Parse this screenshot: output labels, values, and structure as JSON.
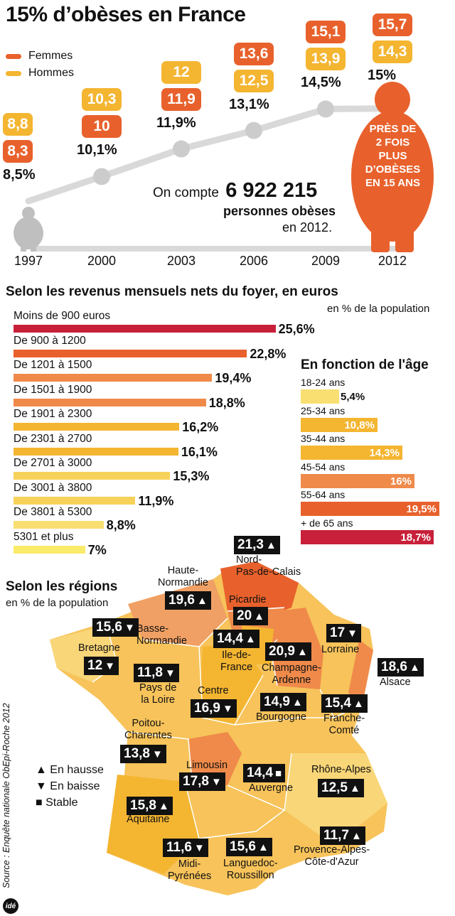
{
  "header": {
    "title": "15% d’obèses en France",
    "legend": [
      {
        "label": "Femmes",
        "color": "#e8612c"
      },
      {
        "label": "Hommes",
        "color": "#f4b531"
      }
    ]
  },
  "trend": {
    "note_pre": "On compte",
    "note_number": "6 922 215",
    "note_line2": "personnes obèses",
    "note_line3": "en 2012.",
    "figure_text": [
      "PRÈS DE",
      "2 FOIS",
      "PLUS",
      "D’OBÈSES",
      "EN 15 ANS"
    ]
  },
  "chart_data": [
    {
      "type": "line",
      "x": [
        "1997",
        "2000",
        "2003",
        "2006",
        "2009",
        "2012"
      ],
      "total": {
        "values": [
          8.5,
          10.1,
          11.9,
          13.1,
          14.5,
          15
        ],
        "labels": [
          "8,5%",
          "10,1%",
          "11,9%",
          "13,1%",
          "14,5%",
          "15%"
        ]
      },
      "series": [
        {
          "name": "Femmes",
          "values": [
            8.3,
            10,
            11.9,
            13.6,
            15.1,
            15.7
          ],
          "labels": [
            "8,3",
            "10",
            "11,9",
            "13,6",
            "15,1",
            "15,7"
          ]
        },
        {
          "name": "Hommes",
          "values": [
            8.8,
            10.3,
            12,
            12.5,
            13.9,
            14.3
          ],
          "labels": [
            "8,8",
            "10,3",
            "12",
            "12,5",
            "13,9",
            "14,3"
          ]
        }
      ],
      "order_top_first": [
        [
          "Hommes",
          "Femmes"
        ],
        [
          "Hommes",
          "Femmes"
        ],
        [
          "Hommes",
          "Femmes"
        ],
        [
          "Femmes",
          "Hommes"
        ],
        [
          "Femmes",
          "Hommes"
        ],
        [
          "Femmes",
          "Hommes"
        ]
      ]
    },
    {
      "type": "bar",
      "title": "Selon les revenus mensuels nets du foyer, en euros",
      "unit_note": "en % de la population",
      "categories": [
        "Moins de 900 euros",
        "De 900 à 1200",
        "De 1201 à 1500",
        "De 1501 à 1900",
        "De 1901 à 2300",
        "De 2301 à 2700",
        "De 2701 à 3000",
        "De 3001 à 3800",
        "De 3801 à 5300",
        "5301 et plus"
      ],
      "values": [
        25.6,
        22.8,
        19.4,
        18.8,
        16.2,
        16.1,
        15.3,
        11.9,
        8.8,
        7
      ],
      "labels": [
        "25,6%",
        "22,8%",
        "19,4%",
        "18,8%",
        "16,2%",
        "16,1%",
        "15,3%",
        "11,9%",
        "8,8%",
        "7%"
      ],
      "colors": [
        "#c8203a",
        "#e8612c",
        "#ef8a4a",
        "#ef8a4a",
        "#f4b531",
        "#f4b531",
        "#f7d25a",
        "#f7d25a",
        "#f9df72",
        "#faeb6a"
      ]
    },
    {
      "type": "bar",
      "title": "En fonction de l'âge",
      "categories": [
        "18-24 ans",
        "25-34 ans",
        "35-44 ans",
        "45-54 ans",
        "55-64 ans",
        "+ de 65 ans"
      ],
      "values": [
        5.4,
        10.8,
        14.3,
        16,
        19.5,
        18.7
      ],
      "labels": [
        "5,4%",
        "10,8%",
        "14,3%",
        "16%",
        "19,5%",
        "18,7%"
      ],
      "colors": [
        "#f9df72",
        "#f4b531",
        "#f4b531",
        "#ef8a4a",
        "#e8612c",
        "#c8203a"
      ]
    }
  ],
  "regions": {
    "title": "Selon les régions",
    "subtitle": "en % de la population",
    "key": [
      {
        "symbol": "▲",
        "label": "En hausse"
      },
      {
        "symbol": "▼",
        "label": "En baisse"
      },
      {
        "symbol": "■",
        "label": "Stable"
      }
    ],
    "items": [
      {
        "name": "Nord-\nPas-de-Calais",
        "value": "21,3",
        "trend": "▲"
      },
      {
        "name": "Haute-\nNormandie",
        "value": "19,6",
        "trend": "▲"
      },
      {
        "name": "Picardie",
        "value": "20",
        "trend": "▲"
      },
      {
        "name": "Basse-\nNormandie",
        "value": "15,6",
        "trend": "▼"
      },
      {
        "name": "Bretagne",
        "value": "12",
        "trend": "▼"
      },
      {
        "name": "Ile-de-\nFrance",
        "value": "14,4",
        "trend": "▲"
      },
      {
        "name": "Champagne-\nArdenne",
        "value": "20,9",
        "trend": "▲"
      },
      {
        "name": "Lorraine",
        "value": "17",
        "trend": "▼"
      },
      {
        "name": "Alsace",
        "value": "18,6",
        "trend": "▲"
      },
      {
        "name": "Pays de\nla Loire",
        "value": "11,8",
        "trend": "▼"
      },
      {
        "name": "Centre",
        "value": "16,9",
        "trend": "▼"
      },
      {
        "name": "Bourgogne",
        "value": "14,9",
        "trend": "▲"
      },
      {
        "name": "Franche-\nComté",
        "value": "15,4",
        "trend": "▲"
      },
      {
        "name": "Poitou-\nCharentes",
        "value": "13,8",
        "trend": "▼"
      },
      {
        "name": "Limousin",
        "value": "17,8",
        "trend": "▼"
      },
      {
        "name": "Auvergne",
        "value": "14,4",
        "trend": "■"
      },
      {
        "name": "Rhône-Alpes",
        "value": "12,5",
        "trend": "▲"
      },
      {
        "name": "Aquitaine",
        "value": "15,8",
        "trend": "▲"
      },
      {
        "name": "Midi-\nPyrénées",
        "value": "11,6",
        "trend": "▼"
      },
      {
        "name": "Languedoc-\nRoussillon",
        "value": "15,6",
        "trend": "▲"
      },
      {
        "name": "Provence-Alpes-\nCôte-d'Azur",
        "value": "11,7",
        "trend": "▲"
      }
    ]
  },
  "footer": {
    "source": "Source : Enquête nationale ObEpi-Roche 2012",
    "logo": "idé"
  }
}
